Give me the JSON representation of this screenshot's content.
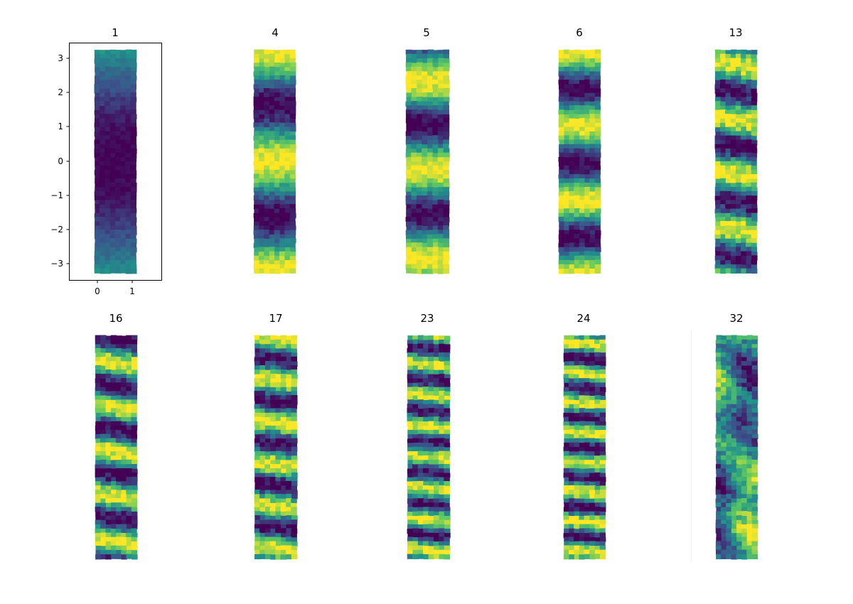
{
  "chart_data": {
    "type": "heatmap",
    "description_colormap": "viridis",
    "colors": {
      "colormap_stops": [
        "#440154",
        "#3b528b",
        "#21918c",
        "#5ec962",
        "#fde725"
      ],
      "axes_frame": "#000000",
      "background": "#ffffff"
    },
    "x_range": [
      0,
      1
    ],
    "y_range": [
      -3.14159,
      3.14159
    ],
    "panels": [
      {
        "title": "1",
        "frequency": 1,
        "phase": 3.14159,
        "show_axes": true
      },
      {
        "title": "4",
        "frequency": 4,
        "phase": 0.0,
        "show_axes": false
      },
      {
        "title": "5",
        "frequency": 5,
        "phase": 0.6,
        "show_axes": false
      },
      {
        "title": "6",
        "frequency": 6,
        "phase": 3.3,
        "show_axes": false
      },
      {
        "title": "13",
        "frequency": 13,
        "phase": 1.1,
        "show_axes": false
      },
      {
        "title": "16",
        "frequency": 16,
        "phase": 0.3,
        "show_axes": false
      },
      {
        "title": "17",
        "frequency": 17,
        "phase": 2.2,
        "show_axes": false
      },
      {
        "title": "23",
        "frequency": 23,
        "phase": 1.7,
        "show_axes": false
      },
      {
        "title": "24",
        "frequency": 24,
        "phase": 2.9,
        "show_axes": false
      },
      {
        "title": "32",
        "frequency": 32,
        "phase": 0.9,
        "show_axes": false
      }
    ],
    "axes": {
      "x_ticks": [
        "0",
        "1"
      ],
      "x_tick_values": [
        0,
        1
      ],
      "y_ticks": [
        "3",
        "2",
        "1",
        "0",
        "−1",
        "−2",
        "−3"
      ],
      "y_tick_values": [
        3,
        2,
        1,
        0,
        -1,
        -2,
        -3
      ],
      "xlim": [
        -0.85,
        1.85
      ],
      "ylim": [
        -3.48,
        3.48
      ]
    }
  }
}
